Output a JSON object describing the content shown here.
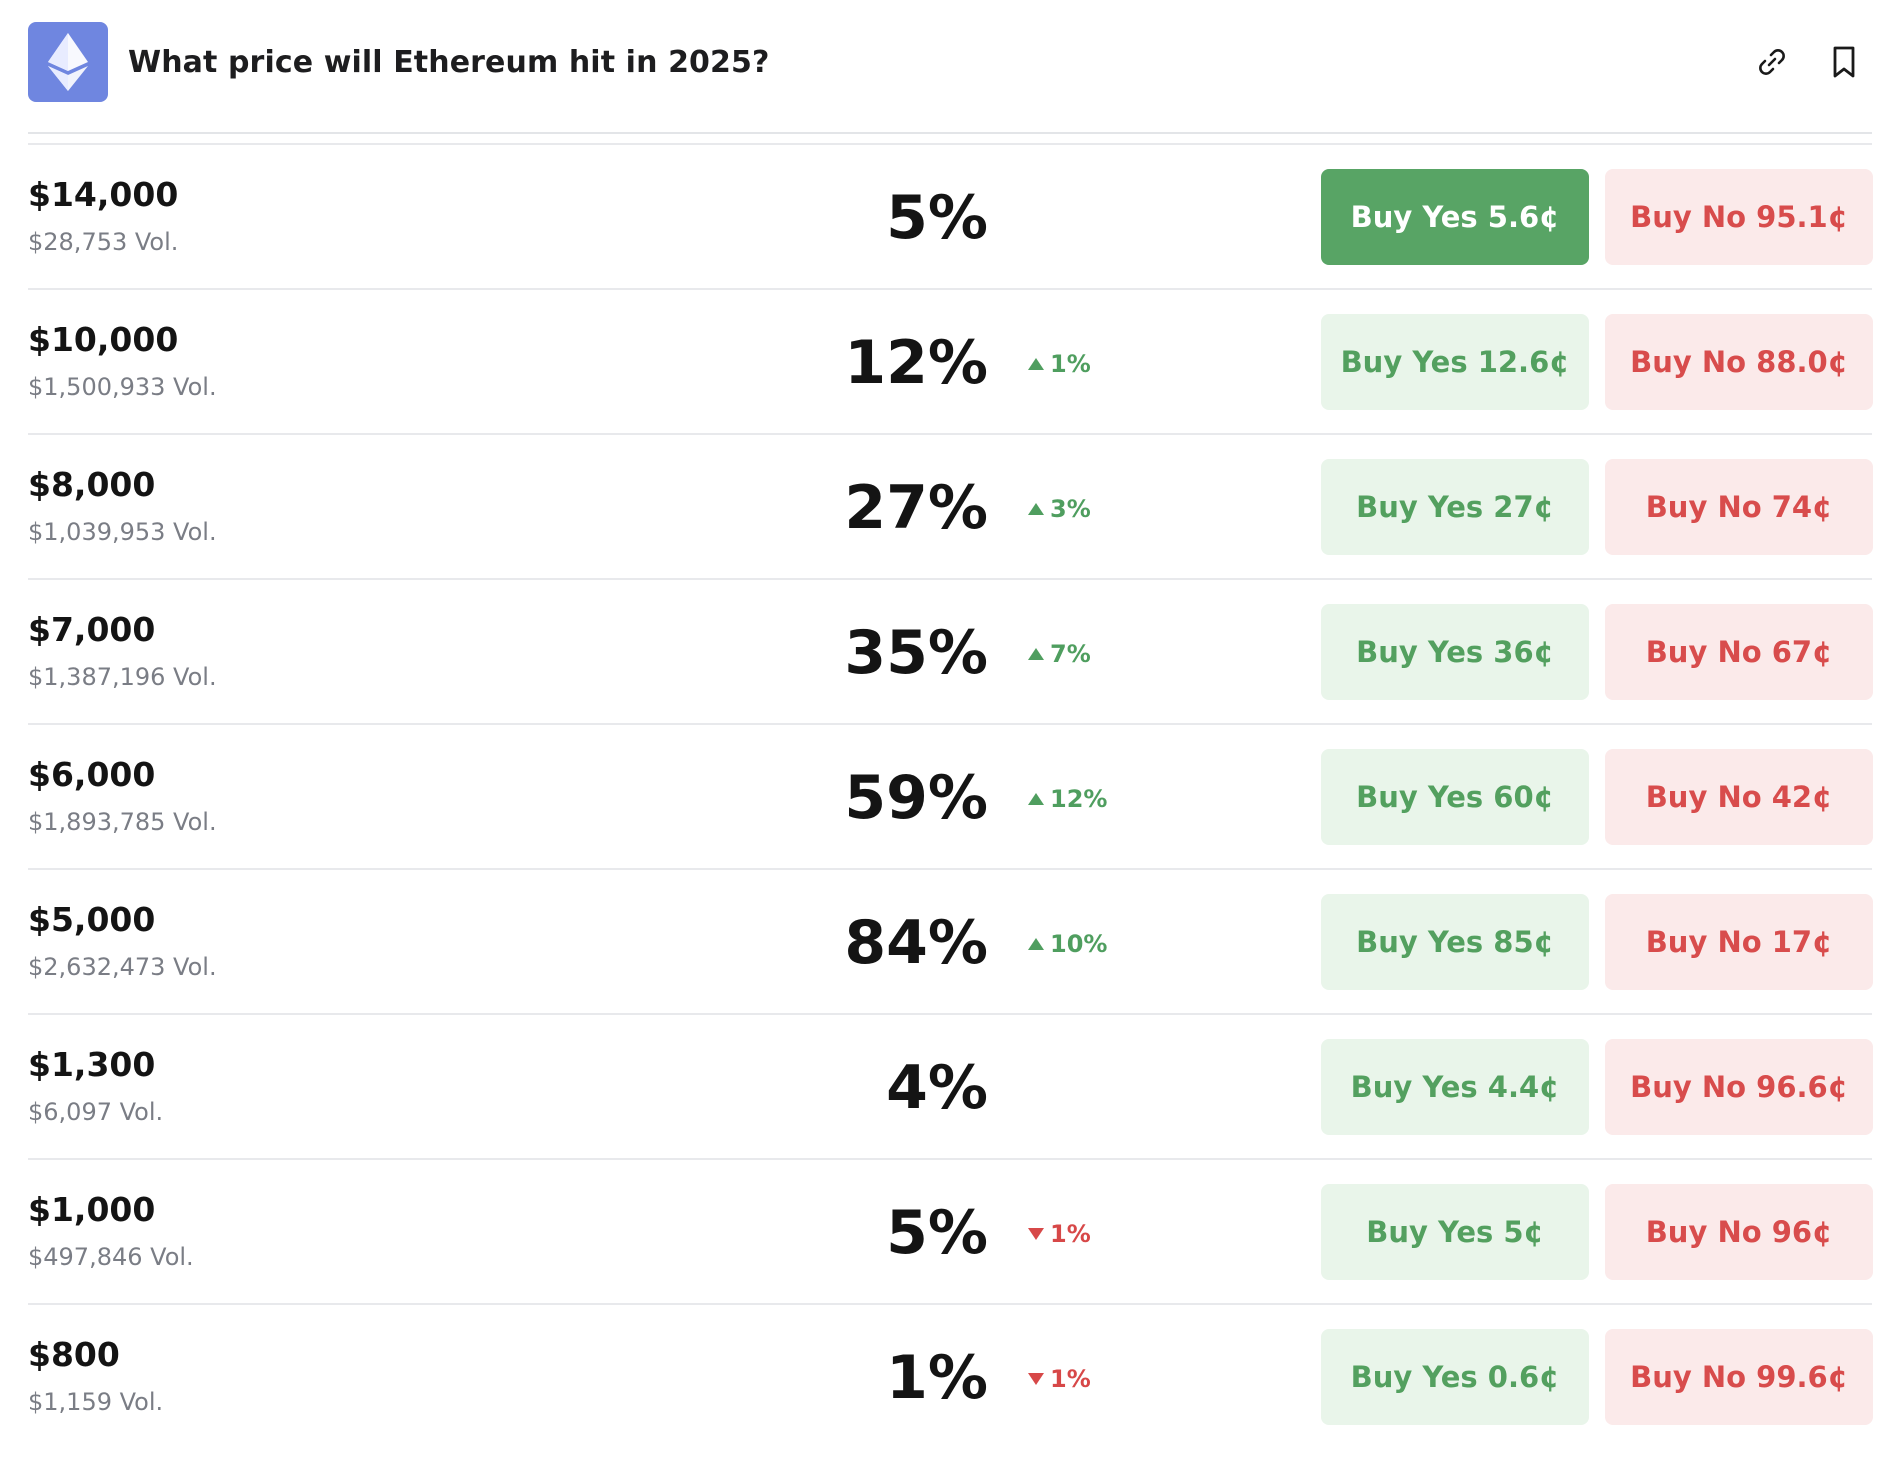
{
  "header": {
    "title": "What price will Ethereum hit in 2025?",
    "logo_icon": "ethereum-logo",
    "actions": [
      {
        "icon": "link-icon",
        "label": "Copy link"
      },
      {
        "icon": "bookmark-icon",
        "label": "Bookmark"
      }
    ]
  },
  "colors": {
    "accent_green": "#58a465",
    "accent_red": "#d84c4c",
    "logo_bg": "#6f86e0"
  },
  "markets": [
    {
      "price": "$14,000",
      "volume": "$28,753 Vol.",
      "chance": "5%",
      "change": "",
      "direction": "",
      "yes": "Buy Yes 5.6¢",
      "no": "Buy No 95.1¢",
      "yes_active": true
    },
    {
      "price": "$10,000",
      "volume": "$1,500,933 Vol.",
      "chance": "12%",
      "change": "1%",
      "direction": "up",
      "yes": "Buy Yes 12.6¢",
      "no": "Buy No 88.0¢",
      "yes_active": false
    },
    {
      "price": "$8,000",
      "volume": "$1,039,953 Vol.",
      "chance": "27%",
      "change": "3%",
      "direction": "up",
      "yes": "Buy Yes 27¢",
      "no": "Buy No 74¢",
      "yes_active": false
    },
    {
      "price": "$7,000",
      "volume": "$1,387,196 Vol.",
      "chance": "35%",
      "change": "7%",
      "direction": "up",
      "yes": "Buy Yes 36¢",
      "no": "Buy No 67¢",
      "yes_active": false
    },
    {
      "price": "$6,000",
      "volume": "$1,893,785 Vol.",
      "chance": "59%",
      "change": "12%",
      "direction": "up",
      "yes": "Buy Yes 60¢",
      "no": "Buy No 42¢",
      "yes_active": false
    },
    {
      "price": "$5,000",
      "volume": "$2,632,473 Vol.",
      "chance": "84%",
      "change": "10%",
      "direction": "up",
      "yes": "Buy Yes 85¢",
      "no": "Buy No 17¢",
      "yes_active": false
    },
    {
      "price": "$1,300",
      "volume": "$6,097 Vol.",
      "chance": "4%",
      "change": "",
      "direction": "",
      "yes": "Buy Yes 4.4¢",
      "no": "Buy No 96.6¢",
      "yes_active": false
    },
    {
      "price": "$1,000",
      "volume": "$497,846 Vol.",
      "chance": "5%",
      "change": "1%",
      "direction": "down",
      "yes": "Buy Yes 5¢",
      "no": "Buy No 96¢",
      "yes_active": false
    },
    {
      "price": "$800",
      "volume": "$1,159 Vol.",
      "chance": "1%",
      "change": "1%",
      "direction": "down",
      "yes": "Buy Yes 0.6¢",
      "no": "Buy No 99.6¢",
      "yes_active": false
    }
  ]
}
